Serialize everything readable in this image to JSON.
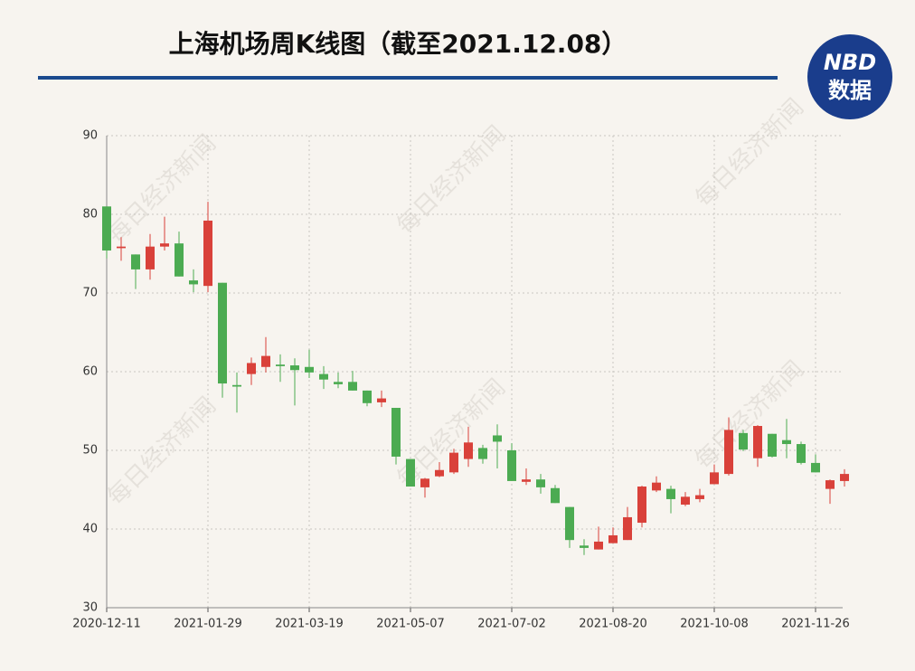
{
  "header": {
    "title": "上海机场周K线图（截至2021.12.08）",
    "logo": {
      "top": "NBD",
      "bottom": "数据"
    }
  },
  "watermark": "每日经济新闻",
  "chart_data": {
    "type": "candlestick",
    "categories": [
      "2020-12-11",
      null,
      null,
      null,
      null,
      null,
      null,
      "2021-01-29",
      null,
      null,
      null,
      null,
      null,
      null,
      "2021-03-19",
      null,
      null,
      null,
      null,
      null,
      null,
      "2021-05-07",
      null,
      null,
      null,
      null,
      null,
      null,
      "2021-07-02",
      null,
      null,
      null,
      null,
      null,
      null,
      "2021-08-20",
      null,
      null,
      null,
      null,
      null,
      null,
      "2021-10-08",
      null,
      null,
      null,
      null,
      null,
      null,
      "2021-11-26",
      null,
      null
    ],
    "open": [
      81,
      75.7,
      74.9,
      73.0,
      75.9,
      76.3,
      71.6,
      70.9,
      71.3,
      58.3,
      59.7,
      60.6,
      60.9,
      60.8,
      60.6,
      59.7,
      58.7,
      58.7,
      57.6,
      56.1,
      55.4,
      48.9,
      45.3,
      46.7,
      47.2,
      48.9,
      50.3,
      51.9,
      50.0,
      46.0,
      46.3,
      45.2,
      42.8,
      37.9,
      37.4,
      38.2,
      38.6,
      40.8,
      44.9,
      45.1,
      43.1,
      43.8,
      45.7,
      47.0,
      52.2,
      49.0,
      52.1,
      51.3,
      50.8,
      48.4,
      45.1,
      46.1
    ],
    "high": [
      81,
      77.1,
      74.9,
      77.5,
      79.7,
      77.8,
      73.0,
      81.6,
      71.3,
      59.9,
      61.8,
      64.4,
      62.2,
      61.7,
      62.8,
      60.7,
      59.9,
      60.1,
      57.6,
      57.6,
      55.4,
      48.9,
      46.5,
      48.5,
      50.2,
      53.0,
      50.7,
      53.3,
      50.9,
      47.7,
      47.0,
      45.6,
      42.8,
      38.7,
      40.3,
      40.2,
      42.8,
      45.5,
      46.7,
      45.5,
      44.7,
      45.1,
      48.2,
      54.2,
      52.6,
      53.2,
      52.1,
      54.0,
      51.1,
      49.5,
      46.3,
      47.6
    ],
    "low": [
      74.4,
      74.1,
      70.5,
      71.7,
      75.4,
      72.1,
      70.1,
      70.1,
      56.7,
      54.8,
      58.3,
      59.9,
      58.7,
      55.7,
      59.2,
      57.8,
      57.9,
      57.6,
      55.6,
      55.5,
      48.2,
      45.4,
      44.0,
      46.6,
      47.0,
      47.9,
      48.3,
      47.7,
      46.1,
      45.6,
      44.5,
      43.3,
      37.6,
      36.7,
      37.4,
      38.2,
      38.6,
      40.2,
      44.7,
      42.0,
      42.9,
      43.4,
      45.7,
      46.8,
      49.9,
      47.9,
      49.1,
      49.0,
      48.2,
      47.2,
      43.2,
      45.4
    ],
    "close": [
      75.4,
      75.9,
      73.0,
      75.9,
      76.3,
      72.1,
      71.1,
      79.2,
      58.5,
      58.1,
      61.1,
      62.0,
      60.7,
      60.2,
      59.9,
      59.0,
      58.4,
      57.6,
      56.0,
      56.6,
      49.2,
      45.4,
      46.4,
      47.5,
      49.7,
      51.0,
      48.9,
      51.1,
      46.1,
      46.3,
      45.3,
      43.3,
      38.6,
      37.6,
      38.4,
      39.2,
      41.5,
      45.4,
      45.9,
      43.8,
      44.1,
      44.3,
      47.2,
      52.6,
      50.1,
      53.1,
      49.2,
      50.8,
      48.4,
      47.2,
      46.2,
      47.0
    ],
    "up_color": "#d9413a",
    "down_color": "#4cab52",
    "ylim": [
      30,
      90
    ],
    "yticks": [
      30,
      40,
      50,
      60,
      70,
      80,
      90
    ],
    "grid": true
  }
}
